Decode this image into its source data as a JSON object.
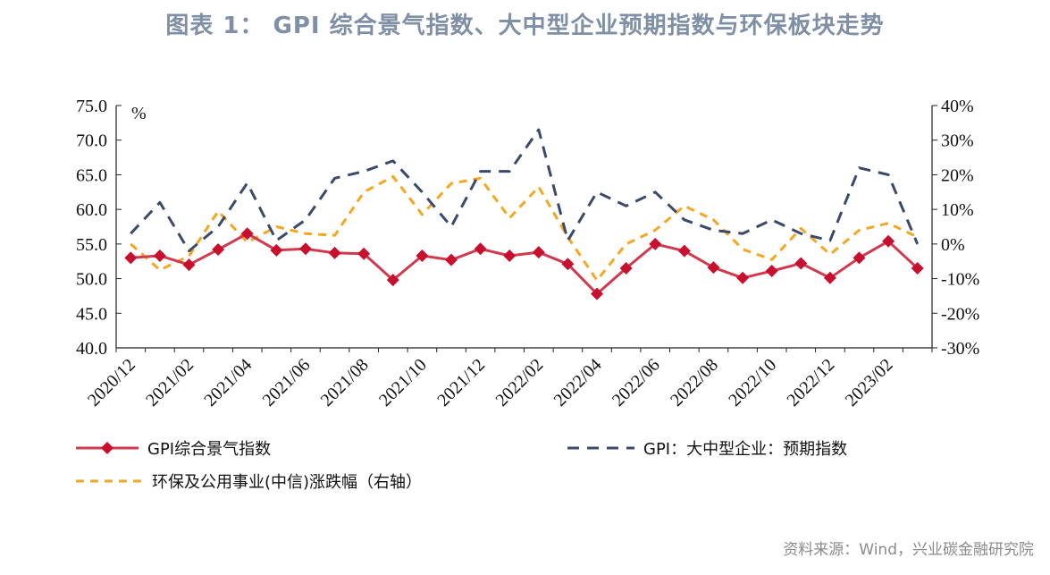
{
  "figure_title": "图表 1： GPI 综合景气指数、大中型企业预期指数与环保板块走势",
  "source_note": "资料来源：Wind，兴业碳金融研究院",
  "colors": {
    "gpi": "#d13a4e",
    "expect": "#3b4a6b",
    "env": "#f5a623",
    "title": "#7f8fa6"
  },
  "chart_data": {
    "type": "line",
    "title": "图表 1： GPI 综合景气指数、大中型企业预期指数与环保板块走势",
    "left_unit_label": "%",
    "x": [
      "2020/12",
      "2021/01",
      "2021/02",
      "2021/03",
      "2021/04",
      "2021/05",
      "2021/06",
      "2021/07",
      "2021/08",
      "2021/09",
      "2021/10",
      "2021/11",
      "2021/12",
      "2022/01",
      "2022/02",
      "2022/03",
      "2022/04",
      "2022/05",
      "2022/06",
      "2022/07",
      "2022/08",
      "2022/09",
      "2022/10",
      "2022/11",
      "2022/12",
      "2023/01",
      "2023/02",
      "2023/03"
    ],
    "x_tick_labels": [
      "2020/12",
      "2021/02",
      "2021/04",
      "2021/06",
      "2021/08",
      "2021/10",
      "2021/12",
      "2022/02",
      "2022/04",
      "2022/06",
      "2022/08",
      "2022/10",
      "2022/12",
      "2023/02"
    ],
    "y_left": {
      "ylim": [
        40,
        75
      ],
      "ticks": [
        "75.0",
        "70.0",
        "65.0",
        "60.0",
        "55.0",
        "50.0",
        "45.0",
        "40.0"
      ]
    },
    "y_right": {
      "ylim": [
        -30,
        40
      ],
      "ticks": [
        "40%",
        "30%",
        "20%",
        "10%",
        "0%",
        "-10%",
        "-20%",
        "-30%"
      ]
    },
    "series": [
      {
        "name": "GPI综合景气指数",
        "axis": "left",
        "style": "solid-diamond",
        "values": [
          53.0,
          53.3,
          52.0,
          54.2,
          56.5,
          54.1,
          54.3,
          53.7,
          53.6,
          49.8,
          53.3,
          52.7,
          54.3,
          53.3,
          53.8,
          52.1,
          47.8,
          51.5,
          55.0,
          54.0,
          51.6,
          50.1,
          51.1,
          52.2,
          50.1,
          53.0,
          55.4,
          51.5
        ]
      },
      {
        "name": "GPI：大中型企业：预期指数",
        "axis": "left",
        "style": "dashed",
        "values": [
          56.5,
          61.0,
          54.0,
          57.5,
          63.8,
          55.5,
          58.5,
          64.5,
          65.5,
          67.0,
          62.5,
          57.5,
          65.5,
          65.5,
          71.5,
          55.5,
          62.5,
          60.5,
          62.5,
          58.5,
          57.0,
          56.5,
          58.5,
          56.5,
          55.5,
          66.0,
          65.0,
          55.0
        ]
      },
      {
        "name": "环保及公用事业(中信)涨跌幅（右轴）",
        "axis": "right",
        "style": "dashed",
        "values": [
          0.0,
          -7.5,
          -3.5,
          9.5,
          0.5,
          5.0,
          3.0,
          2.5,
          15.0,
          19.5,
          8.5,
          17.5,
          19.0,
          7.5,
          16.5,
          2.0,
          -10.5,
          0.0,
          4.0,
          11.0,
          7.0,
          -1.5,
          -4.5,
          4.5,
          -3.0,
          4.0,
          6.0,
          2.0
        ]
      }
    ],
    "grid": false,
    "legend_position": "bottom"
  }
}
